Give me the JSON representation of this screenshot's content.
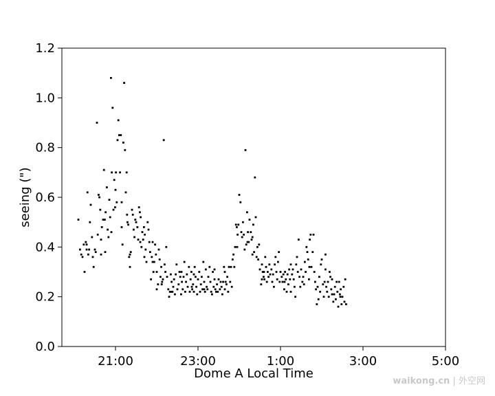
{
  "chart_data": {
    "type": "scatter",
    "xlabel": "Dome A Local Time",
    "ylabel": "seeing (\")",
    "x_unit": "hours (local time; 24 = 0:00, 29 = 5:00)",
    "xlim": [
      19.7,
      29.0
    ],
    "ylim": [
      0.0,
      1.2
    ],
    "x_ticks": [
      21,
      23,
      25,
      27,
      29
    ],
    "x_tick_labels": [
      "21:00",
      "23:00",
      "1:00",
      "3:00",
      "5:00"
    ],
    "y_ticks": [
      0.0,
      0.2,
      0.4,
      0.6,
      0.8,
      1.0,
      1.2
    ],
    "y_tick_labels": [
      "0.0",
      "0.2",
      "0.4",
      "0.6",
      "0.8",
      "1.0",
      "1.2"
    ],
    "grid": false,
    "marker_color": "#000000",
    "points": [
      [
        20.1,
        0.51
      ],
      [
        20.14,
        0.39
      ],
      [
        20.17,
        0.37
      ],
      [
        20.2,
        0.36
      ],
      [
        20.23,
        0.41
      ],
      [
        20.25,
        0.3
      ],
      [
        20.28,
        0.42
      ],
      [
        20.3,
        0.39
      ],
      [
        20.32,
        0.62
      ],
      [
        20.34,
        0.37
      ],
      [
        20.36,
        0.39
      ],
      [
        20.38,
        0.5
      ],
      [
        20.4,
        0.57
      ],
      [
        20.43,
        0.44
      ],
      [
        20.45,
        0.36
      ],
      [
        20.47,
        0.32
      ],
      [
        20.5,
        0.39
      ],
      [
        20.52,
        0.38
      ],
      [
        20.55,
        0.9
      ],
      [
        20.57,
        0.45
      ],
      [
        20.59,
        0.61
      ],
      [
        20.61,
        0.6
      ],
      [
        20.63,
        0.55
      ],
      [
        20.65,
        0.37
      ],
      [
        20.67,
        0.48
      ],
      [
        20.7,
        0.51
      ],
      [
        20.72,
        0.71
      ],
      [
        20.74,
        0.51
      ],
      [
        20.76,
        0.54
      ],
      [
        20.79,
        0.64
      ],
      [
        20.81,
        0.47
      ],
      [
        20.83,
        0.44
      ],
      [
        20.85,
        0.59
      ],
      [
        20.87,
        0.52
      ],
      [
        20.89,
        1.08
      ],
      [
        20.91,
        0.7
      ],
      [
        20.93,
        0.96
      ],
      [
        20.95,
        0.55
      ],
      [
        20.97,
        0.67
      ],
      [
        20.99,
        0.56
      ],
      [
        21.01,
        0.7
      ],
      [
        21.03,
        0.58
      ],
      [
        21.05,
        0.83
      ],
      [
        21.07,
        0.91
      ],
      [
        21.09,
        0.85
      ],
      [
        21.11,
        0.7
      ],
      [
        21.13,
        0.85
      ],
      [
        21.15,
        0.48
      ],
      [
        21.17,
        0.41
      ],
      [
        21.19,
        0.82
      ],
      [
        21.21,
        1.06
      ],
      [
        21.23,
        0.79
      ],
      [
        21.25,
        0.62
      ],
      [
        21.27,
        0.7
      ],
      [
        21.29,
        0.5
      ],
      [
        21.31,
        0.49
      ],
      [
        21.33,
        0.36
      ],
      [
        21.35,
        0.32
      ],
      [
        21.37,
        0.38
      ],
      [
        21.4,
        0.55
      ],
      [
        21.42,
        0.53
      ],
      [
        21.44,
        0.47
      ],
      [
        21.46,
        0.44
      ],
      [
        21.48,
        0.51
      ],
      [
        21.5,
        0.5
      ],
      [
        21.53,
        0.48
      ],
      [
        21.55,
        0.43
      ],
      [
        21.57,
        0.56
      ],
      [
        21.59,
        0.54
      ],
      [
        21.61,
        0.52
      ],
      [
        21.63,
        0.4
      ],
      [
        21.65,
        0.46
      ],
      [
        21.67,
        0.43
      ],
      [
        21.69,
        0.48
      ],
      [
        21.71,
        0.45
      ],
      [
        21.73,
        0.39
      ],
      [
        21.75,
        0.34
      ],
      [
        21.78,
        0.5
      ],
      [
        21.8,
        0.47
      ],
      [
        21.82,
        0.42
      ],
      [
        21.84,
        0.38
      ],
      [
        21.86,
        0.27
      ],
      [
        21.88,
        0.36
      ],
      [
        21.9,
        0.42
      ],
      [
        21.92,
        0.3
      ],
      [
        21.94,
        0.34
      ],
      [
        21.96,
        0.41
      ],
      [
        21.98,
        0.37
      ],
      [
        22.0,
        0.23
      ],
      [
        22.03,
        0.25
      ],
      [
        22.05,
        0.39
      ],
      [
        22.07,
        0.35
      ],
      [
        22.09,
        0.28
      ],
      [
        22.11,
        0.32
      ],
      [
        22.13,
        0.26
      ],
      [
        22.15,
        0.27
      ],
      [
        22.17,
        0.83
      ],
      [
        22.19,
        0.33
      ],
      [
        22.21,
        0.3
      ],
      [
        22.23,
        0.4
      ],
      [
        22.25,
        0.28
      ],
      [
        22.28,
        0.23
      ],
      [
        22.3,
        0.2
      ],
      [
        22.32,
        0.22
      ],
      [
        22.34,
        0.29
      ],
      [
        22.36,
        0.26
      ],
      [
        22.38,
        0.22
      ],
      [
        22.4,
        0.24
      ],
      [
        22.42,
        0.27
      ],
      [
        22.44,
        0.21
      ],
      [
        22.46,
        0.29
      ],
      [
        22.48,
        0.33
      ],
      [
        22.5,
        0.23
      ],
      [
        22.53,
        0.25
      ],
      [
        22.55,
        0.3
      ],
      [
        22.57,
        0.28
      ],
      [
        22.59,
        0.21
      ],
      [
        22.61,
        0.26
      ],
      [
        22.63,
        0.23
      ],
      [
        22.65,
        0.28
      ],
      [
        22.67,
        0.34
      ],
      [
        22.69,
        0.22
      ],
      [
        22.71,
        0.26
      ],
      [
        22.73,
        0.29
      ],
      [
        22.75,
        0.24
      ],
      [
        22.78,
        0.32
      ],
      [
        22.8,
        0.22
      ],
      [
        22.82,
        0.27
      ],
      [
        22.84,
        0.3
      ],
      [
        22.86,
        0.23
      ],
      [
        22.88,
        0.25
      ],
      [
        22.9,
        0.22
      ],
      [
        22.92,
        0.32
      ],
      [
        22.94,
        0.28
      ],
      [
        22.96,
        0.24
      ],
      [
        22.98,
        0.21
      ],
      [
        23.0,
        0.27
      ],
      [
        23.03,
        0.3
      ],
      [
        23.05,
        0.22
      ],
      [
        23.07,
        0.25
      ],
      [
        23.09,
        0.28
      ],
      [
        23.11,
        0.23
      ],
      [
        23.13,
        0.34
      ],
      [
        23.15,
        0.26
      ],
      [
        23.17,
        0.22
      ],
      [
        23.19,
        0.31
      ],
      [
        23.21,
        0.24
      ],
      [
        23.23,
        0.23
      ],
      [
        23.25,
        0.28
      ],
      [
        23.28,
        0.32
      ],
      [
        23.3,
        0.26
      ],
      [
        23.32,
        0.22
      ],
      [
        23.34,
        0.21
      ],
      [
        23.36,
        0.3
      ],
      [
        23.38,
        0.24
      ],
      [
        23.4,
        0.27
      ],
      [
        23.42,
        0.23
      ],
      [
        23.44,
        0.22
      ],
      [
        23.46,
        0.25
      ],
      [
        23.48,
        0.22
      ],
      [
        23.5,
        0.27
      ],
      [
        23.53,
        0.23
      ],
      [
        23.55,
        0.26
      ],
      [
        23.57,
        0.24
      ],
      [
        23.59,
        0.21
      ],
      [
        23.61,
        0.26
      ],
      [
        23.63,
        0.32
      ],
      [
        23.65,
        0.3
      ],
      [
        23.67,
        0.26
      ],
      [
        23.69,
        0.25
      ],
      [
        23.71,
        0.28
      ],
      [
        23.73,
        0.22
      ],
      [
        23.75,
        0.32
      ],
      [
        23.78,
        0.26
      ],
      [
        23.8,
        0.32
      ],
      [
        23.82,
        0.24
      ],
      [
        23.84,
        0.35
      ],
      [
        23.86,
        0.37
      ],
      [
        23.88,
        0.32
      ],
      [
        23.9,
        0.4
      ],
      [
        23.92,
        0.49
      ],
      [
        23.94,
        0.48
      ],
      [
        23.96,
        0.45
      ],
      [
        23.98,
        0.49
      ],
      [
        24.0,
        0.61
      ],
      [
        24.03,
        0.58
      ],
      [
        24.05,
        0.46
      ],
      [
        24.07,
        0.44
      ],
      [
        24.09,
        0.5
      ],
      [
        24.11,
        0.45
      ],
      [
        24.13,
        0.39
      ],
      [
        24.15,
        0.79
      ],
      [
        24.17,
        0.41
      ],
      [
        24.19,
        0.54
      ],
      [
        24.21,
        0.46
      ],
      [
        24.23,
        0.42
      ],
      [
        24.25,
        0.51
      ],
      [
        24.28,
        0.46
      ],
      [
        24.3,
        0.43
      ],
      [
        24.32,
        0.37
      ],
      [
        24.34,
        0.49
      ],
      [
        24.36,
        0.38
      ],
      [
        24.38,
        0.68
      ],
      [
        24.4,
        0.52
      ],
      [
        24.42,
        0.36
      ],
      [
        24.44,
        0.4
      ],
      [
        24.46,
        0.35
      ],
      [
        24.48,
        0.41
      ],
      [
        24.5,
        0.31
      ],
      [
        24.53,
        0.25
      ],
      [
        24.55,
        0.33
      ],
      [
        24.57,
        0.3
      ],
      [
        24.59,
        0.28
      ],
      [
        24.61,
        0.27
      ],
      [
        24.63,
        0.36
      ],
      [
        24.65,
        0.32
      ],
      [
        24.67,
        0.26
      ],
      [
        24.69,
        0.3
      ],
      [
        24.71,
        0.28
      ],
      [
        24.73,
        0.33
      ],
      [
        24.75,
        0.29
      ],
      [
        24.78,
        0.31
      ],
      [
        24.8,
        0.26
      ],
      [
        24.82,
        0.29
      ],
      [
        24.84,
        0.24
      ],
      [
        24.86,
        0.33
      ],
      [
        24.88,
        0.36
      ],
      [
        24.9,
        0.3
      ],
      [
        24.92,
        0.27
      ],
      [
        24.94,
        0.34
      ],
      [
        24.96,
        0.38
      ],
      [
        24.98,
        0.26
      ],
      [
        25.0,
        0.3
      ],
      [
        25.03,
        0.28
      ],
      [
        25.05,
        0.26
      ],
      [
        25.07,
        0.29
      ],
      [
        25.09,
        0.23
      ],
      [
        25.11,
        0.3
      ],
      [
        25.13,
        0.27
      ],
      [
        25.15,
        0.22
      ],
      [
        25.17,
        0.29
      ],
      [
        25.19,
        0.25
      ],
      [
        25.21,
        0.31
      ],
      [
        25.23,
        0.27
      ],
      [
        25.25,
        0.22
      ],
      [
        25.28,
        0.29
      ],
      [
        25.3,
        0.31
      ],
      [
        25.32,
        0.27
      ],
      [
        25.34,
        0.24
      ],
      [
        25.36,
        0.2
      ],
      [
        25.38,
        0.33
      ],
      [
        25.4,
        0.36
      ],
      [
        25.42,
        0.3
      ],
      [
        25.44,
        0.43
      ],
      [
        25.46,
        0.28
      ],
      [
        25.48,
        0.24
      ],
      [
        25.5,
        0.31
      ],
      [
        25.53,
        0.26
      ],
      [
        25.55,
        0.28
      ],
      [
        25.57,
        0.25
      ],
      [
        25.59,
        0.34
      ],
      [
        25.61,
        0.3
      ],
      [
        25.63,
        0.4
      ],
      [
        25.65,
        0.38
      ],
      [
        25.67,
        0.35
      ],
      [
        25.69,
        0.27
      ],
      [
        25.71,
        0.43
      ],
      [
        25.73,
        0.45
      ],
      [
        25.75,
        0.32
      ],
      [
        25.78,
        0.38
      ],
      [
        25.8,
        0.45
      ],
      [
        25.82,
        0.3
      ],
      [
        25.84,
        0.26
      ],
      [
        25.86,
        0.23
      ],
      [
        25.88,
        0.17
      ],
      [
        25.9,
        0.24
      ],
      [
        25.92,
        0.19
      ],
      [
        25.94,
        0.28
      ],
      [
        25.96,
        0.22
      ],
      [
        25.98,
        0.33
      ],
      [
        26.0,
        0.35
      ],
      [
        26.03,
        0.25
      ],
      [
        26.05,
        0.2
      ],
      [
        26.07,
        0.26
      ],
      [
        26.09,
        0.37
      ],
      [
        26.11,
        0.24
      ],
      [
        26.13,
        0.22
      ],
      [
        26.15,
        0.26
      ],
      [
        26.17,
        0.2
      ],
      [
        26.19,
        0.3
      ],
      [
        26.21,
        0.28
      ],
      [
        26.23,
        0.23
      ],
      [
        26.25,
        0.27
      ],
      [
        26.28,
        0.18
      ],
      [
        26.3,
        0.21
      ],
      [
        26.32,
        0.24
      ],
      [
        26.34,
        0.19
      ],
      [
        26.36,
        0.26
      ],
      [
        26.38,
        0.22
      ],
      [
        26.4,
        0.16
      ],
      [
        26.42,
        0.26
      ],
      [
        26.44,
        0.21
      ],
      [
        26.46,
        0.23
      ],
      [
        26.48,
        0.17
      ],
      [
        26.5,
        0.2
      ],
      [
        26.53,
        0.24
      ],
      [
        26.55,
        0.18
      ],
      [
        26.57,
        0.27
      ],
      [
        26.59,
        0.17
      ],
      [
        26.09,
        0.31
      ],
      [
        25.25,
        0.33
      ],
      [
        24.55,
        0.27
      ],
      [
        23.4,
        0.31
      ],
      [
        22.9,
        0.29
      ],
      [
        22.6,
        0.3
      ],
      [
        21.9,
        0.34
      ],
      [
        21.35,
        0.37
      ],
      [
        20.75,
        0.38
      ],
      [
        20.3,
        0.41
      ],
      [
        20.65,
        0.43
      ],
      [
        21.0,
        0.63
      ],
      [
        21.15,
        0.58
      ],
      [
        21.28,
        0.53
      ],
      [
        20.9,
        0.46
      ],
      [
        21.6,
        0.42
      ],
      [
        21.7,
        0.36
      ],
      [
        22.0,
        0.3
      ],
      [
        22.12,
        0.25
      ],
      [
        22.35,
        0.22
      ],
      [
        22.85,
        0.24
      ],
      [
        23.15,
        0.23
      ],
      [
        23.65,
        0.23
      ],
      [
        23.95,
        0.4
      ],
      [
        24.2,
        0.42
      ],
      [
        24.32,
        0.44
      ],
      [
        24.6,
        0.3
      ],
      [
        25.1,
        0.26
      ],
      [
        25.7,
        0.32
      ],
      [
        26.25,
        0.21
      ],
      [
        26.45,
        0.2
      ]
    ]
  },
  "watermark": {
    "brand": "waikong.cn",
    "separator": "|",
    "cn": "外空网"
  }
}
